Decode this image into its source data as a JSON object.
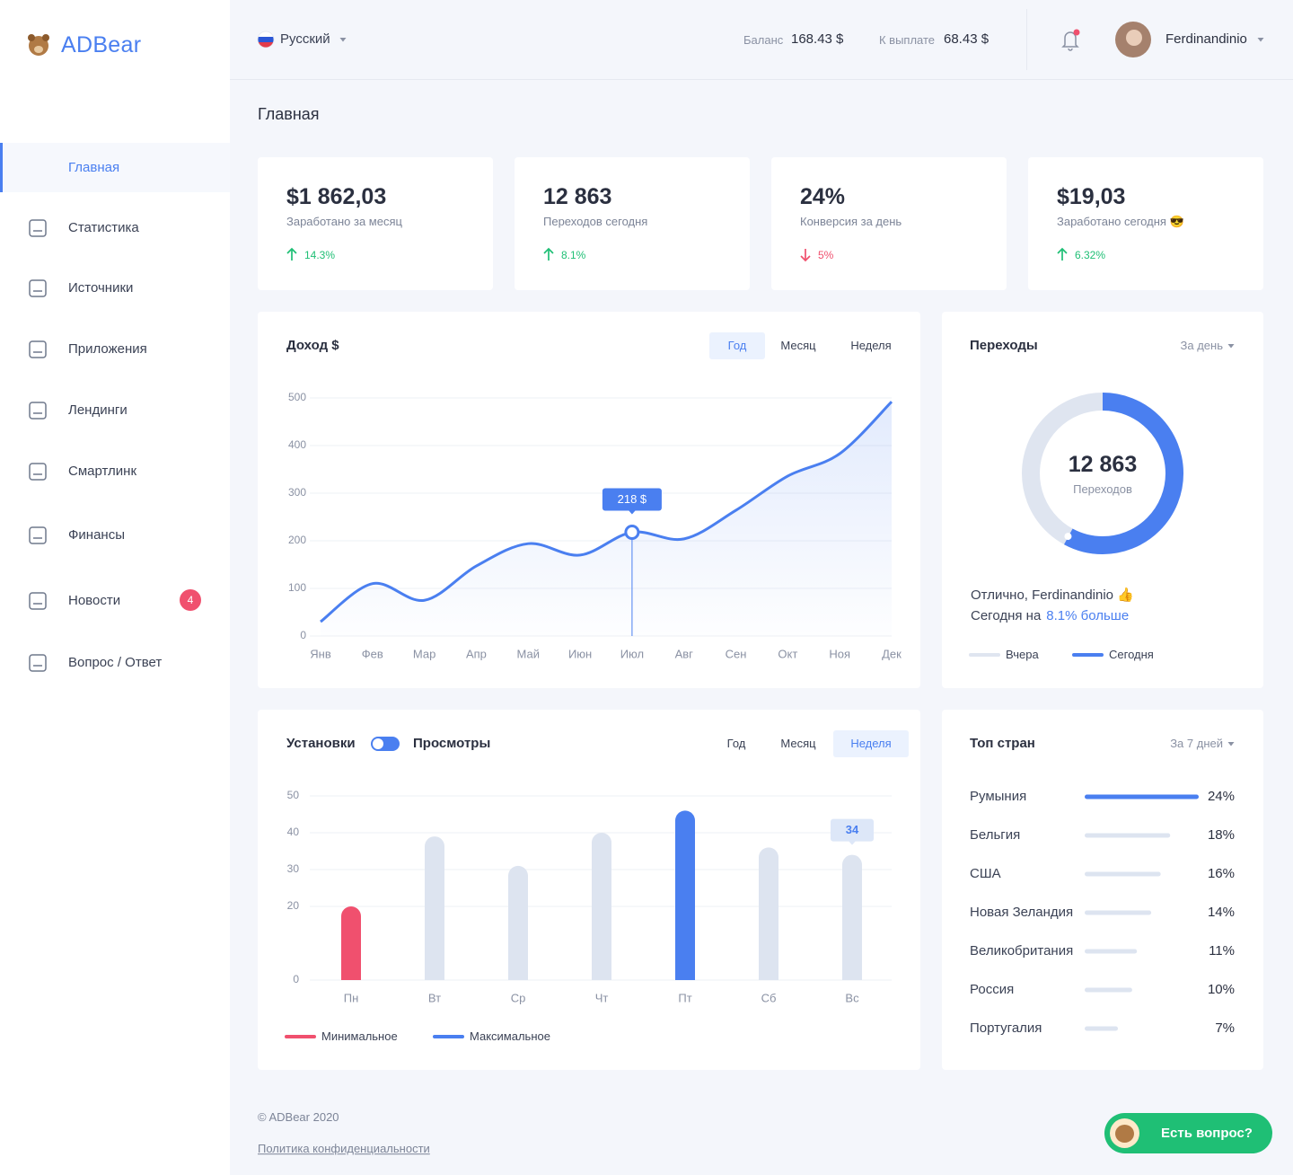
{
  "sidebar": {
    "logo": "ADBear",
    "nav": [
      "Главная",
      "Статистика",
      "Источники",
      "Приложения",
      "Лендинги",
      "Смартлинк",
      "Финансы",
      "Новости",
      "Вопрос / Ответ"
    ],
    "active": 0,
    "badge": {
      "item": 7,
      "count": 4
    }
  },
  "header": {
    "language": "Русский",
    "balance_label": "Баланс",
    "balance": "168.43 $",
    "payout_label": "К выплате",
    "payout": "68.43 $",
    "user": "Ferdinandinio"
  },
  "page_title": "Главная",
  "stats": [
    {
      "value": "$1 862,03",
      "label": "Заработано за месяц",
      "change": "14.3%",
      "trend": "up"
    },
    {
      "value": "12 863",
      "label": "Переходов сегодня",
      "change": "8.1%",
      "trend": "up"
    },
    {
      "value": "24%",
      "label": "Конверсия за день",
      "change": "5%",
      "trend": "down"
    },
    {
      "value": "$19,03",
      "label": "Заработано сегодня 😎",
      "change": "6.32%",
      "trend": "up"
    }
  ],
  "income": {
    "type": "line",
    "title": "Доход $",
    "tabs": [
      "Год",
      "Месяц",
      "Неделя"
    ],
    "active_tab": 0,
    "color": "#4a7ff0",
    "categories": [
      "Янв",
      "Фев",
      "Мар",
      "Апр",
      "Май",
      "Июн",
      "Июл",
      "Авг",
      "Сен",
      "Окт",
      "Ноя",
      "Дек"
    ],
    "values": [
      30,
      110,
      75,
      147,
      194,
      170,
      218,
      204,
      264,
      336,
      383,
      492
    ],
    "ylim": [
      0,
      500
    ],
    "yticks": [
      0,
      100,
      200,
      300,
      400,
      500
    ],
    "grid": true,
    "tooltip": {
      "index": 6,
      "label": "218 $"
    }
  },
  "transitions": {
    "type": "donut",
    "title": "Переходы",
    "filter": "За день",
    "center_value": "12 863",
    "center_label": "Переходов",
    "today_percent": 58,
    "message": "Отлично, Ferdinandinio 👍",
    "compare_prefix": "Сегодня на",
    "compare_value": "8.1% больше",
    "series": [
      {
        "name": "Вчера",
        "color": "#dfe5f0"
      },
      {
        "name": "Сегодня",
        "color": "#4a7ff0"
      }
    ]
  },
  "installs": {
    "type": "bar",
    "toggle_left": "Установки",
    "toggle_right": "Просмотры",
    "tabs": [
      "Год",
      "Месяц",
      "Неделя"
    ],
    "active_tab": 2,
    "categories": [
      "Пн",
      "Вт",
      "Ср",
      "Чт",
      "Пт",
      "Сб",
      "Вс"
    ],
    "values": [
      20,
      39,
      31,
      40,
      46,
      36,
      34
    ],
    "color": "#dde4f0",
    "ylim": [
      0,
      50
    ],
    "yticks": [
      0,
      20,
      30,
      40,
      50
    ],
    "grid": true,
    "tooltip_index": 6,
    "legend": [
      {
        "name": "Минимальное",
        "color": "#f0506e"
      },
      {
        "name": "Максимальное",
        "color": "#4a7ff0"
      }
    ]
  },
  "countries": {
    "type": "hbar",
    "title": "Топ стран",
    "filter": "За 7 дней",
    "categories": [
      "Румыния",
      "Бельгия",
      "США",
      "Новая Зеландия",
      "Великобритания",
      "Россия",
      "Португалия"
    ],
    "values": [
      24,
      18,
      16,
      14,
      11,
      10,
      7
    ],
    "value_labels": [
      "24%",
      "18%",
      "16%",
      "14%",
      "11%",
      "10%",
      "7%"
    ],
    "color": "#dde4f0",
    "highlight_color": "#4a7ff0"
  },
  "footer": {
    "copyright": "© ADBear 2020",
    "privacy": "Политика конфиденциальности",
    "chat": "Есть вопрос?"
  }
}
